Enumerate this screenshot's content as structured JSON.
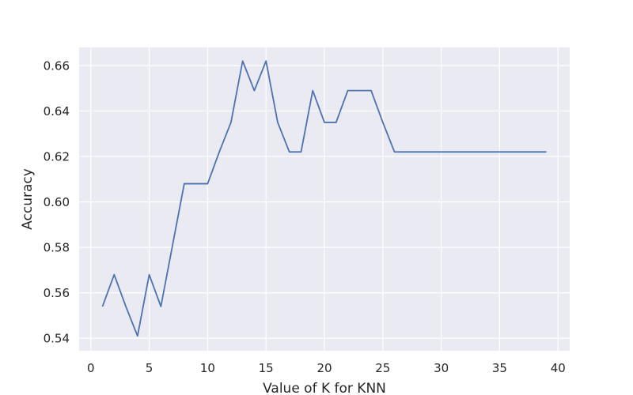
{
  "chart_data": {
    "type": "line",
    "title": "",
    "xlabel": "Value of K for KNN",
    "ylabel": "Accuracy",
    "xlim": [
      -1,
      41
    ],
    "ylim": [
      0.5345,
      0.668
    ],
    "xticks": [
      0,
      5,
      10,
      15,
      20,
      25,
      30,
      35,
      40
    ],
    "yticks": [
      0.54,
      0.56,
      0.58,
      0.6,
      0.62,
      0.64,
      0.66
    ],
    "ytick_labels": [
      "0.54",
      "0.56",
      "0.58",
      "0.60",
      "0.62",
      "0.64",
      "0.66"
    ],
    "grid": true,
    "background": "#eaeaf2",
    "grid_color": "#ffffff",
    "series": [
      {
        "color": "#4c72b0",
        "x": [
          1,
          2,
          3,
          4,
          5,
          6,
          7,
          8,
          9,
          10,
          11,
          12,
          13,
          14,
          15,
          16,
          17,
          18,
          19,
          20,
          21,
          22,
          23,
          24,
          25,
          26,
          27,
          28,
          29,
          30,
          31,
          32,
          33,
          34,
          35,
          36,
          37,
          38,
          39
        ],
        "y": [
          0.554,
          0.568,
          0.554,
          0.541,
          0.568,
          0.554,
          0.581,
          0.608,
          0.608,
          0.608,
          0.622,
          0.635,
          0.662,
          0.649,
          0.662,
          0.635,
          0.622,
          0.622,
          0.649,
          0.635,
          0.635,
          0.649,
          0.649,
          0.649,
          0.635,
          0.622,
          0.622,
          0.622,
          0.622,
          0.622,
          0.622,
          0.622,
          0.622,
          0.622,
          0.622,
          0.622,
          0.622,
          0.622,
          0.622
        ]
      }
    ]
  }
}
